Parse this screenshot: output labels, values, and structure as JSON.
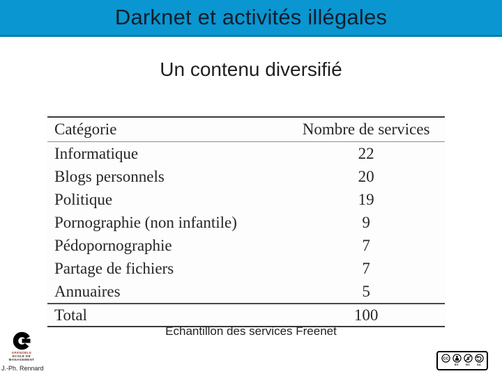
{
  "colors": {
    "header_bg": "#0a96d0",
    "header_edge": "#077fb2",
    "title_text": "#111d2b",
    "body_text": "#1f1f1f",
    "table_text": "#262626",
    "rule_dark": "#3a3a3a",
    "rule_mid": "#4a4a4a",
    "rule_light": "#8c8c8c",
    "logo_red": "#b03a30"
  },
  "header": {
    "title": "Darknet et activités illégales"
  },
  "subtitle": "Un contenu diversifié",
  "table": {
    "columns": [
      "Catégorie",
      "Nombre de services"
    ],
    "rows": [
      [
        "Informatique",
        "22"
      ],
      [
        "Blogs personnels",
        "20"
      ],
      [
        "Politique",
        "19"
      ],
      [
        "Pornographie (non infantile)",
        "9"
      ],
      [
        "Pédopornographie",
        "7"
      ],
      [
        "Partage de fichiers",
        "7"
      ],
      [
        "Annuaires",
        "5"
      ]
    ],
    "total_row": [
      "Total",
      "100"
    ]
  },
  "caption": "Echantillon des services Freenet",
  "footer": {
    "logo_lines": [
      "GRENOBLE",
      "ECOLE DE",
      "MANAGEMENT"
    ],
    "author": "J.-Ph. Rennard",
    "license_icons": [
      "cc-icon",
      "cc-by-icon",
      "cc-nc-icon",
      "cc-sa-icon"
    ],
    "license_labels": [
      "BY",
      "NC",
      "SA"
    ]
  }
}
